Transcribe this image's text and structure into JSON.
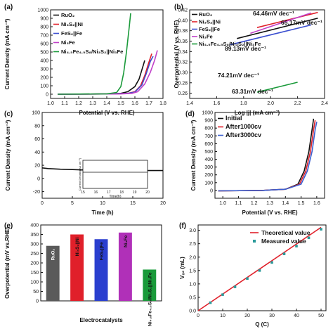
{
  "chart_data": [
    {
      "panel": "(a)",
      "type": "line",
      "xlabel": "Potential (V vs. RHE)",
      "ylabel": "Current Density (mA cm⁻²)",
      "xlim": [
        1.0,
        1.8
      ],
      "ylim": [
        -50,
        1000
      ],
      "xticks": [
        "1.0",
        "1.1",
        "1.2",
        "1.3",
        "1.4",
        "1.5",
        "1.6",
        "1.7",
        "1.8"
      ],
      "yticks": [
        "0",
        "100",
        "200",
        "300",
        "400",
        "500",
        "600",
        "700",
        "800",
        "900",
        "1000"
      ],
      "series": [
        {
          "name": "RuO₂",
          "color": "#111111",
          "x": [
            1.05,
            1.4,
            1.5,
            1.55,
            1.6,
            1.63,
            1.65,
            1.67
          ],
          "y": [
            0,
            3,
            10,
            30,
            90,
            180,
            290,
            400
          ]
        },
        {
          "name": "Ni₃S₂||Ni",
          "color": "#e0202a",
          "x": [
            1.05,
            1.45,
            1.55,
            1.6,
            1.64,
            1.67,
            1.7,
            1.72
          ],
          "y": [
            0,
            3,
            10,
            30,
            100,
            220,
            380,
            480
          ]
        },
        {
          "name": "FeS₂||Fe",
          "color": "#3b4fd0",
          "x": [
            1.05,
            1.45,
            1.55,
            1.6,
            1.65,
            1.68,
            1.71,
            1.73
          ],
          "y": [
            0,
            3,
            10,
            25,
            110,
            240,
            390,
            450
          ]
        },
        {
          "name": "Ni₃Fe",
          "color": "#c040c8",
          "x": [
            1.05,
            1.5,
            1.58,
            1.62,
            1.67,
            1.71,
            1.74,
            1.76
          ],
          "y": [
            0,
            3,
            10,
            30,
            120,
            260,
            400,
            520
          ]
        },
        {
          "name": "Ni₄.₅Fe₄.₅S₈/Ni₃S₂||Ni₃Fe",
          "color": "#1a9a3a",
          "x": [
            1.05,
            1.4,
            1.47,
            1.5,
            1.52,
            1.54,
            1.56,
            1.57
          ],
          "y": [
            0,
            3,
            20,
            90,
            250,
            500,
            800,
            960
          ]
        }
      ]
    },
    {
      "panel": "(b)",
      "type": "line",
      "xlabel": "Log |j| (mA cm⁻²)",
      "ylabel": "Overpotential (V vs. RHE)",
      "xlim": [
        1.4,
        2.4
      ],
      "ylim": [
        0.25,
        0.42
      ],
      "xticks": [
        "1.4",
        "1.6",
        "1.8",
        "2.0",
        "2.2",
        "2.4"
      ],
      "yticks": [
        "0.26",
        "0.28",
        "0.30",
        "0.32",
        "0.34",
        "0.36",
        "0.38",
        "0.40",
        "0.42"
      ],
      "annotations": [
        "64.46mV dec⁻¹",
        "65.17mV dec⁻¹",
        "89.13mV dec⁻¹",
        "74.21mV dec⁻¹",
        "63.31mV dec⁻¹"
      ],
      "series": [
        {
          "name": "RuO₂",
          "color": "#111111",
          "x": [
            1.75,
            2.35
          ],
          "y": [
            0.365,
            0.404
          ]
        },
        {
          "name": "Ni₃S₂||Ni",
          "color": "#e0202a",
          "x": [
            1.9,
            2.35
          ],
          "y": [
            0.386,
            0.415
          ]
        },
        {
          "name": "FeS₂||Fe",
          "color": "#3b4fd0",
          "x": [
            1.7,
            2.3
          ],
          "y": [
            0.353,
            0.391
          ]
        },
        {
          "name": "Ni₃Fe",
          "color": "#c040c8",
          "x": [
            1.85,
            2.3
          ],
          "y": [
            0.375,
            0.414
          ]
        },
        {
          "name": "Ni₄.₅Fe₄.₅S₈/Ni₃S₂||Ni₃Fe",
          "color": "#1a9a3a",
          "x": [
            1.9,
            2.2
          ],
          "y": [
            0.262,
            0.281
          ]
        }
      ]
    },
    {
      "panel": "(c)",
      "type": "line",
      "xlabel": "Time (h)",
      "ylabel": "Current Density (mA cm⁻²)",
      "xlim": [
        0,
        20
      ],
      "ylim": [
        -30,
        100
      ],
      "xticks": [
        "0",
        "5",
        "10",
        "15",
        "20"
      ],
      "yticks": [
        "-20",
        "0",
        "20",
        "40",
        "60",
        "80",
        "100"
      ],
      "series": [
        {
          "name": "stability",
          "color": "#111111",
          "x": [
            0,
            1,
            3,
            5,
            8,
            10,
            13,
            15,
            18,
            20
          ],
          "y": [
            16,
            15,
            14,
            13.5,
            12.5,
            12,
            12,
            12,
            12,
            12
          ]
        }
      ],
      "inset": {
        "xlabel": "Time(h)",
        "ylabel": "Current Density(mA cm⁻²)",
        "xticks": [
          "15",
          "16",
          "17",
          "18",
          "19",
          "20"
        ]
      }
    },
    {
      "panel": "(d)",
      "type": "line",
      "xlabel": "Potential (V vs. RHE)",
      "ylabel": "Current Density (mA cm⁻²)",
      "xlim": [
        0.95,
        1.65
      ],
      "ylim": [
        -100,
        1000
      ],
      "xticks": [
        "1.0",
        "1.1",
        "1.2",
        "1.3",
        "1.4",
        "1.5",
        "1.6"
      ],
      "yticks": [
        "0",
        "100",
        "200",
        "300",
        "400",
        "500",
        "600",
        "700",
        "800",
        "900",
        "1000"
      ],
      "series": [
        {
          "name": "Initial",
          "color": "#111111",
          "x": [
            0.97,
            1.25,
            1.4,
            1.48,
            1.52,
            1.55,
            1.57,
            1.58
          ],
          "y": [
            -5,
            0,
            15,
            80,
            250,
            500,
            780,
            920
          ]
        },
        {
          "name": "After1000cv",
          "color": "#e0202a",
          "x": [
            0.97,
            1.25,
            1.4,
            1.49,
            1.53,
            1.56,
            1.58,
            1.59
          ],
          "y": [
            -5,
            0,
            15,
            80,
            250,
            500,
            780,
            900
          ]
        },
        {
          "name": "After3000cv",
          "color": "#3b5fd0",
          "x": [
            0.97,
            1.25,
            1.4,
            1.5,
            1.54,
            1.57,
            1.59,
            1.6
          ],
          "y": [
            -5,
            0,
            15,
            80,
            250,
            500,
            780,
            880
          ]
        }
      ]
    },
    {
      "panel": "(e)",
      "type": "bar",
      "xlabel": "Electrocatalysts",
      "ylabel": "Overpotential (mV vs.RHE)",
      "ylim": [
        0,
        400
      ],
      "yticks": [
        "0",
        "50",
        "100",
        "150",
        "200",
        "250",
        "300",
        "350",
        "400"
      ],
      "categories": [
        "RuO₂",
        "Ni₃S₂||Ni",
        "FeS₂||Fe",
        "Ni₃Fe",
        "Ni₄.₅Fe₄.₅S₈/Ni₃S₂||Ni₃Fe"
      ],
      "values": [
        290,
        350,
        325,
        360,
        165
      ],
      "colors": [
        "#5a5a5a",
        "#e0202a",
        "#2a3fcf",
        "#b030b8",
        "#1a9a3a"
      ]
    },
    {
      "panel": "(f)",
      "type": "scatter",
      "xlabel": "Q (C)",
      "ylabel": "Vₒ₂ (mL)",
      "xlim": [
        0,
        52
      ],
      "ylim": [
        0,
        3.2
      ],
      "xticks": [
        "0",
        "10",
        "20",
        "30",
        "40",
        "50"
      ],
      "yticks": [
        "0.0",
        "0.5",
        "1.0",
        "1.5",
        "2.0",
        "2.5",
        "3.0"
      ],
      "series": [
        {
          "name": "Theoretical value",
          "color": "#e0202a",
          "x": [
            0,
            50
          ],
          "y": [
            0,
            3.11
          ]
        },
        {
          "name": "Measured value",
          "color": "#2a9a9a",
          "x": [
            5,
            10,
            15,
            20,
            25,
            30,
            35,
            40,
            45,
            50
          ],
          "y": [
            0.3,
            0.6,
            0.89,
            1.2,
            1.5,
            1.8,
            2.12,
            2.41,
            2.72,
            3.04
          ]
        }
      ]
    }
  ]
}
